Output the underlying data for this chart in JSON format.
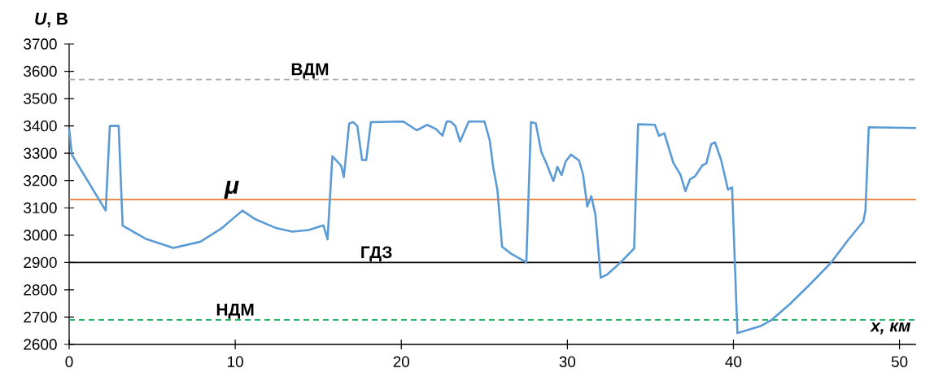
{
  "chart_data": {
    "type": "line",
    "xlabel": "x, км",
    "ylabel": "*U*, В",
    "xlim": [
      0,
      51
    ],
    "xticks": [
      0,
      10,
      20,
      30,
      40,
      50
    ],
    "ylim": [
      2600,
      3700
    ],
    "yticks": [
      2600,
      2700,
      2800,
      2900,
      3000,
      3100,
      3200,
      3300,
      3400,
      3500,
      3600,
      3700
    ],
    "grid": false,
    "marker": "none",
    "line_style": "solid",
    "ref_lines": [
      {
        "axis": "y",
        "value": 3570,
        "label": "ВДМ",
        "color": "#a6a6a6",
        "line_style": "dashed"
      },
      {
        "axis": "y",
        "value": 3130,
        "label": "μ",
        "color": "#ed7d31",
        "line_style": "solid"
      },
      {
        "axis": "y",
        "value": 2900,
        "label": "ГДЗ",
        "color": "#000000",
        "line_style": "solid"
      },
      {
        "axis": "y",
        "value": 2690,
        "label": "НДМ",
        "color": "#00b050",
        "line_style": "dashed"
      }
    ],
    "series": [
      {
        "color": "#5b9bd5",
        "x": [
          0,
          0.16,
          2.2,
          2.45,
          2.98,
          3.22,
          4.64,
          6.27,
          7.9,
          9.2,
          10.43,
          11.16,
          12.46,
          13.44,
          14.42,
          15.31,
          15.56,
          15.85,
          16.37,
          16.54,
          16.86,
          17.1,
          17.35,
          17.64,
          17.89,
          18.17,
          20.12,
          20.93,
          21.55,
          22.08,
          22.48,
          22.73,
          22.97,
          23.25,
          23.54,
          24.06,
          25.01,
          25.33,
          25.53,
          25.79,
          26.07,
          26.64,
          27.53,
          27.81,
          28.1,
          28.43,
          28.75,
          29.16,
          29.4,
          29.65,
          29.9,
          30.22,
          30.71,
          30.95,
          31.2,
          31.44,
          31.69,
          32.01,
          32.42,
          33.15,
          34.02,
          34.26,
          35.27,
          35.52,
          35.84,
          36.38,
          36.82,
          37.11,
          37.39,
          37.68,
          38.12,
          38.37,
          38.66,
          38.89,
          39.26,
          39.67,
          39.92,
          40.24,
          41.63,
          42.28,
          43.42,
          44.56,
          45.86,
          46.84,
          47.82,
          47.95,
          48.15,
          51
        ],
        "values": [
          3390,
          3295,
          3090,
          3400,
          3400,
          3035,
          2986,
          2953,
          2976,
          3026,
          3090,
          3060,
          3026,
          3013,
          3019,
          3036,
          2985,
          3289,
          3255,
          3213,
          3409,
          3414,
          3400,
          3275,
          3275,
          3414,
          3416,
          3384,
          3404,
          3389,
          3364,
          3416,
          3416,
          3400,
          3343,
          3416,
          3416,
          3346,
          3250,
          3165,
          2958,
          2931,
          2901,
          3414,
          3409,
          3305,
          3261,
          3198,
          3250,
          3220,
          3270,
          3295,
          3273,
          3220,
          3105,
          3143,
          3075,
          2844,
          2857,
          2897,
          2951,
          3406,
          3404,
          3364,
          3373,
          3265,
          3220,
          3161,
          3205,
          3215,
          3255,
          3263,
          3333,
          3340,
          3275,
          3167,
          3175,
          2642,
          2667,
          2689,
          2749,
          2817,
          2898,
          2977,
          3050,
          3090,
          3395,
          3392
        ]
      }
    ]
  }
}
